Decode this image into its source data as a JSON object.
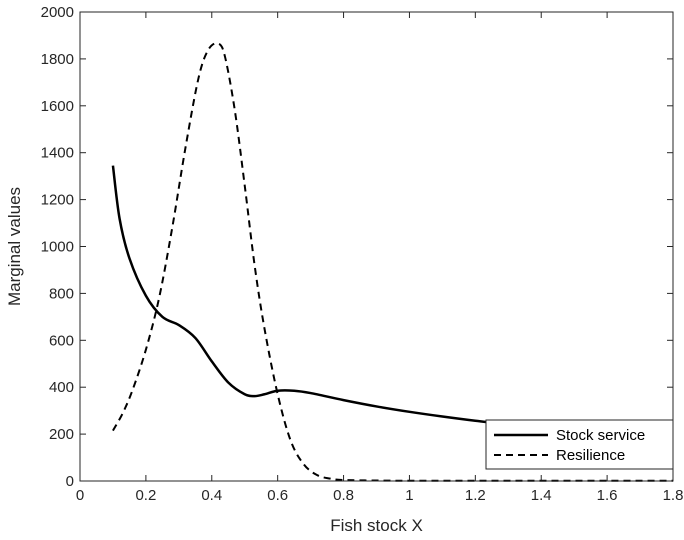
{
  "chart_data": {
    "type": "line",
    "title": "",
    "xlabel": "Fish stock X",
    "ylabel": "Marginal values",
    "xlim": [
      0,
      1.8
    ],
    "ylim": [
      0,
      2000
    ],
    "xticks": [
      0,
      0.2,
      0.4,
      0.6,
      0.8,
      1,
      1.2,
      1.4,
      1.6,
      1.8
    ],
    "xtick_labels": [
      "0",
      "0.2",
      "0.4",
      "0.6",
      "0.8",
      "1",
      "1.2",
      "1.4",
      "1.6",
      "1.8"
    ],
    "yticks": [
      0,
      200,
      400,
      600,
      800,
      1000,
      1200,
      1400,
      1600,
      1800,
      2000
    ],
    "ytick_labels": [
      "0",
      "200",
      "400",
      "600",
      "800",
      "1000",
      "1200",
      "1400",
      "1600",
      "1800",
      "2000"
    ],
    "grid": false,
    "legend": {
      "position": "bottom-right"
    },
    "series": [
      {
        "name": "Stock service",
        "style": "solid",
        "color": "#000000",
        "x": [
          0.1,
          0.12,
          0.15,
          0.2,
          0.25,
          0.3,
          0.35,
          0.4,
          0.45,
          0.5,
          0.53,
          0.56,
          0.6,
          0.65,
          0.7,
          0.8,
          0.9,
          1.0,
          1.1,
          1.2,
          1.3,
          1.4,
          1.5,
          1.6,
          1.7,
          1.8
        ],
        "y": [
          1345,
          1120,
          950,
          790,
          700,
          665,
          610,
          510,
          420,
          370,
          362,
          370,
          385,
          385,
          375,
          345,
          318,
          295,
          275,
          257,
          242,
          228,
          214,
          202,
          190,
          180
        ]
      },
      {
        "name": "Resilience",
        "style": "dashed",
        "color": "#000000",
        "x": [
          0.1,
          0.13,
          0.16,
          0.2,
          0.24,
          0.28,
          0.32,
          0.36,
          0.39,
          0.42,
          0.44,
          0.47,
          0.5,
          0.53,
          0.56,
          0.6,
          0.64,
          0.68,
          0.72,
          0.76,
          0.8,
          0.9,
          1.0,
          1.2,
          1.4,
          1.6,
          1.8
        ],
        "y": [
          215,
          290,
          390,
          560,
          780,
          1080,
          1420,
          1720,
          1840,
          1865,
          1810,
          1580,
          1260,
          920,
          650,
          370,
          170,
          70,
          25,
          10,
          4,
          2,
          1,
          1,
          1,
          1,
          1
        ]
      }
    ]
  }
}
